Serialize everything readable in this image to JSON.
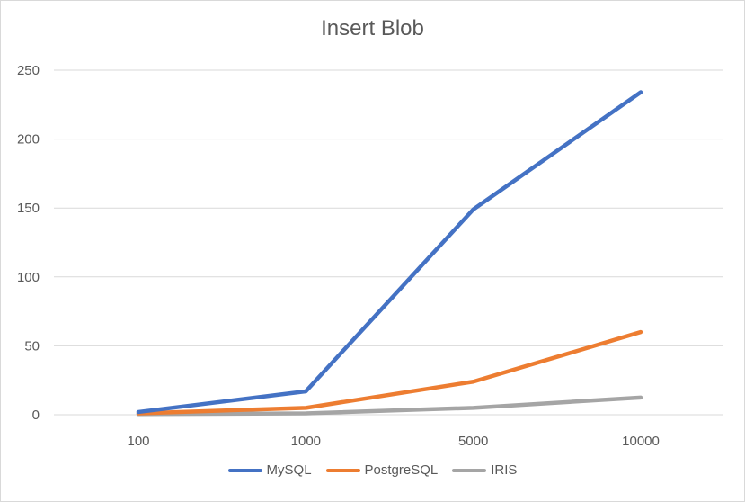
{
  "chart_data": {
    "type": "line",
    "title": "Insert Blob",
    "xlabel": "",
    "ylabel": "",
    "categories": [
      "100",
      "1000",
      "5000",
      "10000"
    ],
    "ylim": [
      0,
      250
    ],
    "yticks": [
      0,
      50,
      100,
      150,
      200,
      250
    ],
    "grid": true,
    "legend_position": "bottom",
    "series": [
      {
        "name": "MySQL",
        "color": "#4472c4",
        "values": [
          2,
          17,
          149,
          234
        ]
      },
      {
        "name": "PostgreSQL",
        "color": "#ed7d31",
        "values": [
          1,
          5,
          24,
          60
        ]
      },
      {
        "name": "IRIS",
        "color": "#a5a5a5",
        "values": [
          0.5,
          1,
          5,
          12.5
        ]
      }
    ]
  }
}
